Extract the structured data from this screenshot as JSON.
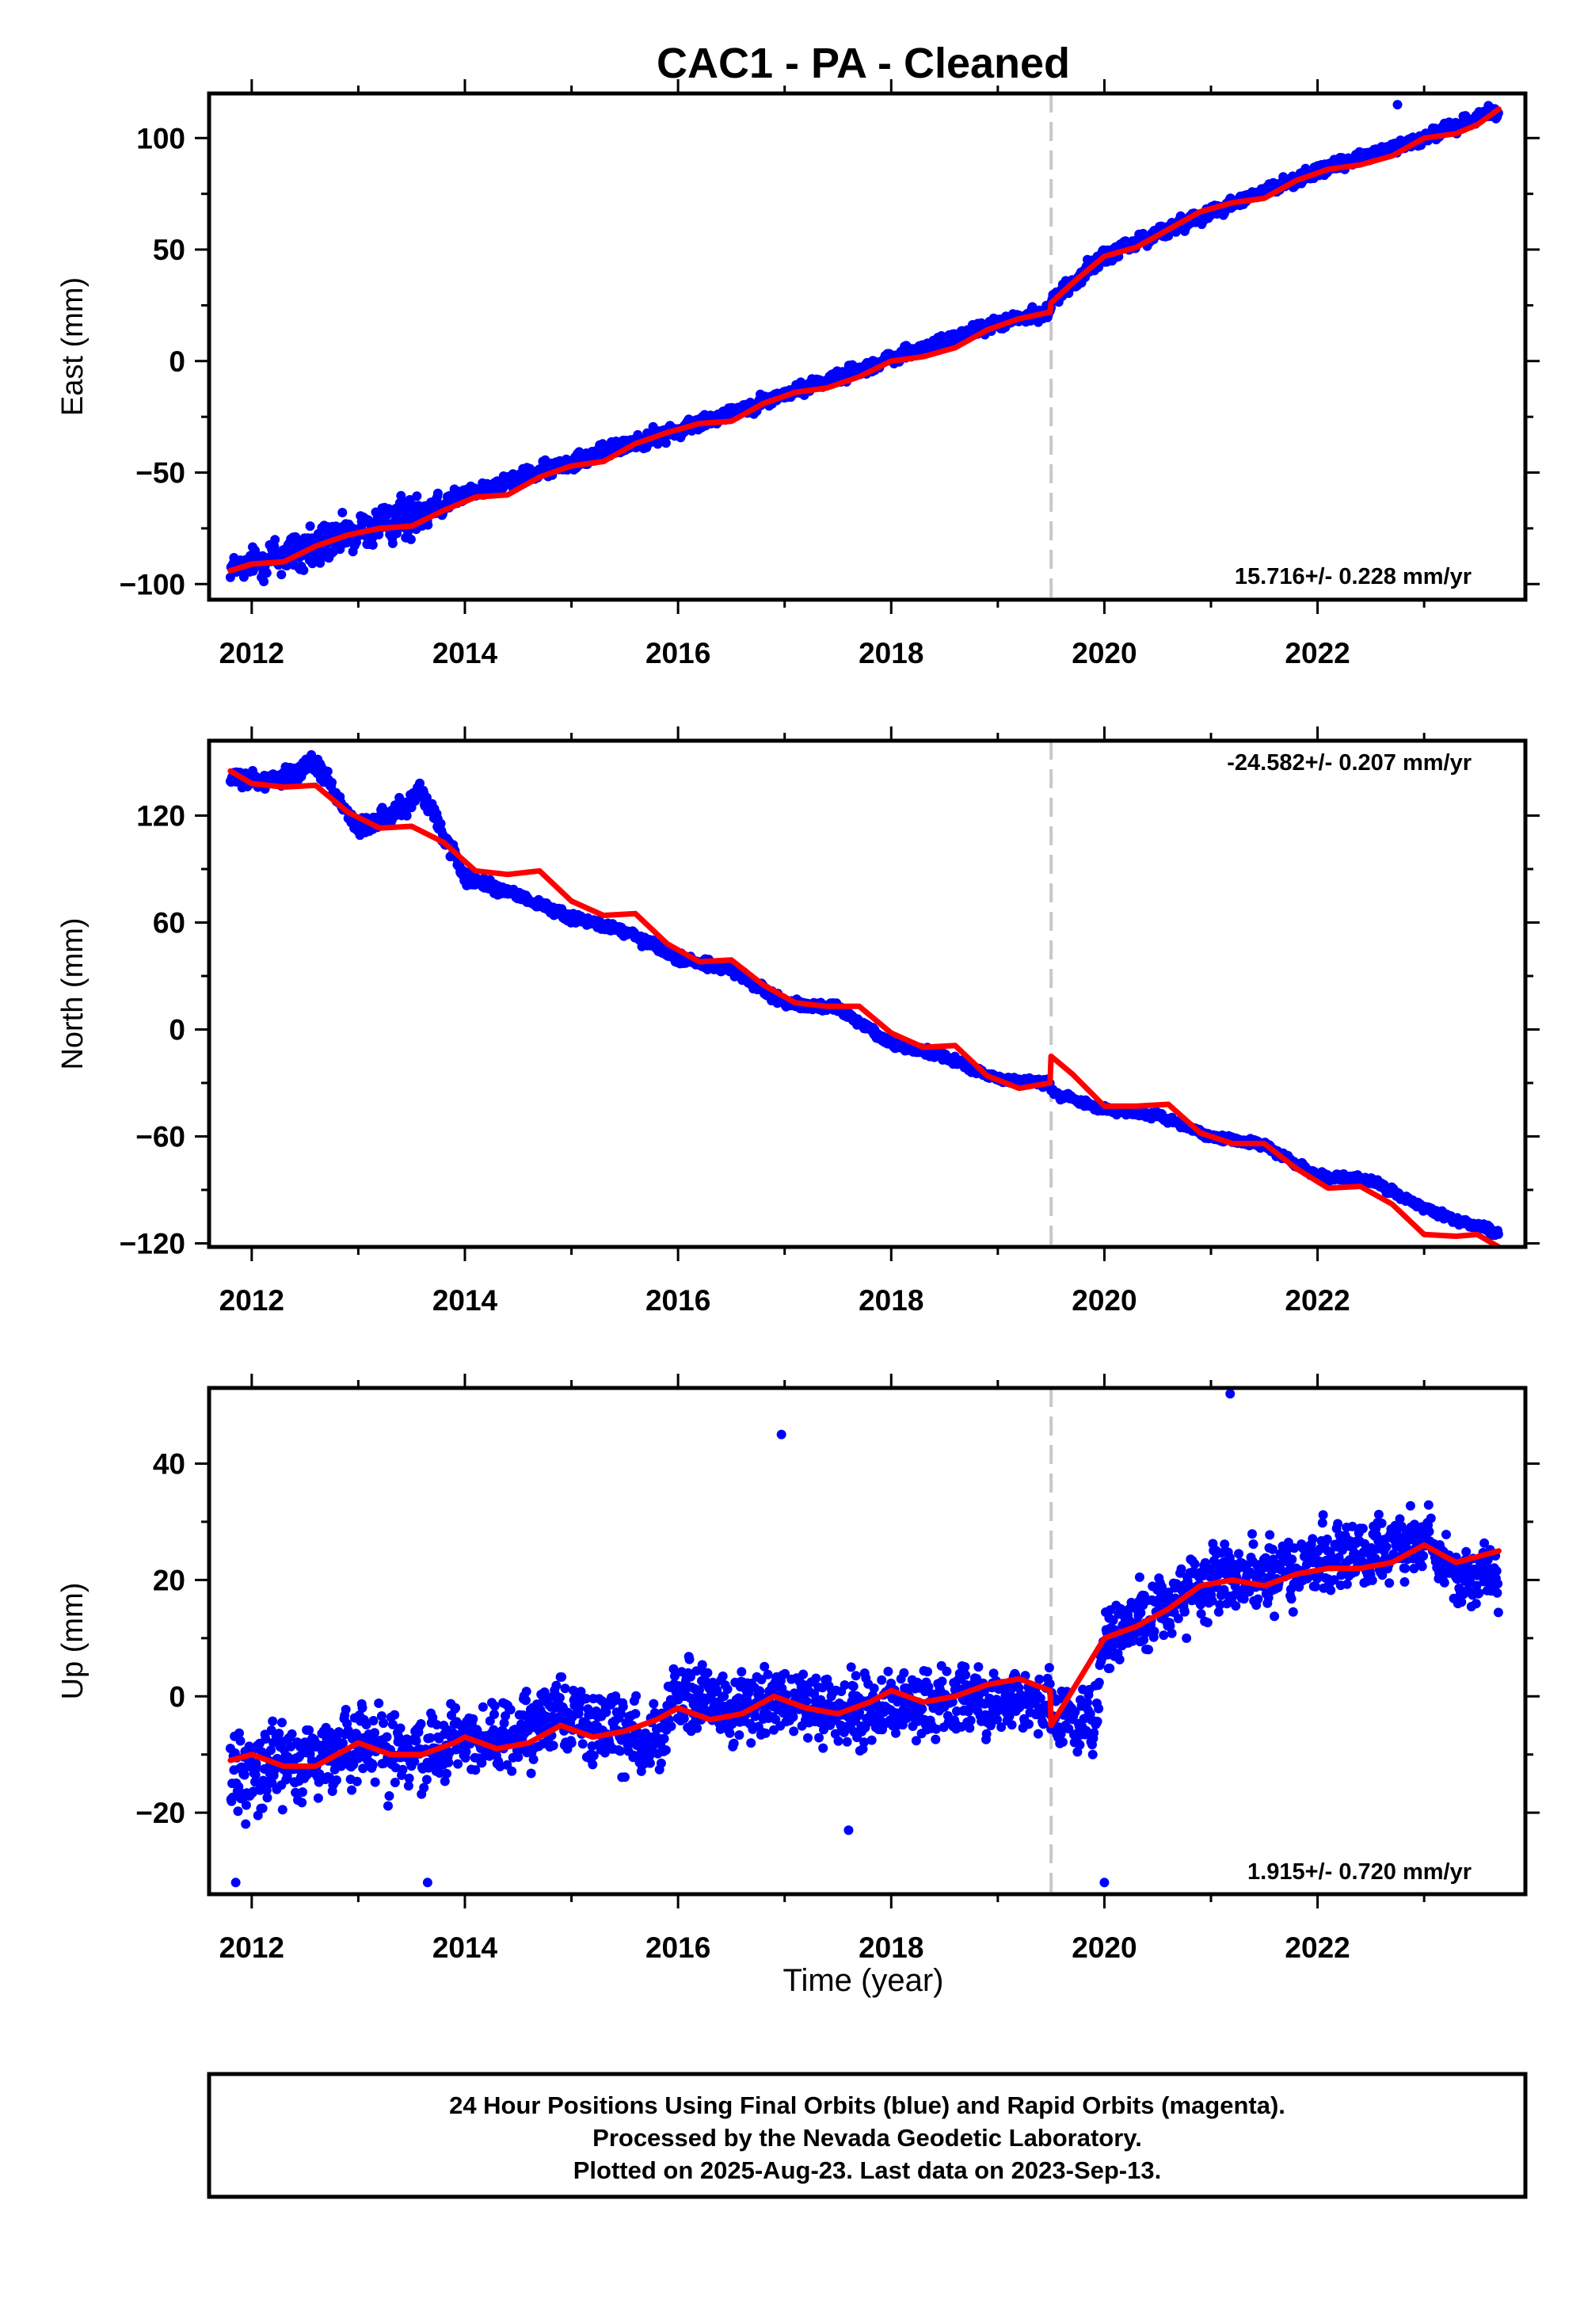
{
  "title": "CAC1  - PA - Cleaned",
  "xlabel": "Time (year)",
  "footer": {
    "line1": "24 Hour Positions Using Final Orbits (blue) and Rapid Orbits (magenta).",
    "line2": "Processed by the Nevada Geodetic Laboratory.",
    "line3": "Plotted on 2025-Aug-23. Last data on 2023-Sep-13."
  },
  "colors": {
    "data": "#0000ff",
    "model": "#ff0000",
    "break_line": "#c8c8c8",
    "frame": "#000000"
  },
  "chart_data": [
    {
      "type": "scatter",
      "id": "east",
      "ylabel": "East (mm)",
      "rate_label": "15.716+/- 0.228 mm/yr",
      "xlim": [
        2011.6,
        2023.95
      ],
      "ylim": [
        -107,
        120
      ],
      "xticks": [
        2012,
        2014,
        2016,
        2018,
        2020,
        2022
      ],
      "yticks": [
        -100,
        -50,
        0,
        50,
        100
      ],
      "break_x": 2019.5,
      "grid": false,
      "model_series": {
        "name": "model",
        "x": [
          2011.8,
          2012.0,
          2012.3,
          2012.6,
          2012.9,
          2013.2,
          2013.5,
          2013.8,
          2014.1,
          2014.4,
          2014.7,
          2015.0,
          2015.3,
          2015.6,
          2015.9,
          2016.2,
          2016.5,
          2016.8,
          2017.1,
          2017.4,
          2017.7,
          2018.0,
          2018.3,
          2018.6,
          2018.9,
          2019.2,
          2019.49,
          2019.5,
          2019.7,
          2020.0,
          2020.3,
          2020.6,
          2020.9,
          2021.2,
          2021.5,
          2021.8,
          2022.1,
          2022.4,
          2022.7,
          2023.0,
          2023.3,
          2023.5,
          2023.7
        ],
        "y": [
          -94,
          -91,
          -90,
          -83,
          -78,
          -75,
          -74,
          -67,
          -61,
          -60,
          -52,
          -47,
          -45,
          -37,
          -32,
          -28,
          -27,
          -19,
          -14,
          -12,
          -7,
          0,
          2,
          6,
          14,
          19,
          22,
          26,
          35,
          47,
          51,
          59,
          67,
          71,
          73,
          81,
          86,
          88,
          92,
          100,
          102,
          106,
          113
        ]
      },
      "data_envelope": {
        "x": [
          2011.8,
          2012.5,
          2013.0,
          2013.5,
          2014.0,
          2015.0,
          2016.0,
          2017.0,
          2018.0,
          2019.0,
          2019.49,
          2019.5,
          2020.0,
          2021.0,
          2022.0,
          2023.0,
          2023.7
        ],
        "center": [
          -93,
          -85,
          -77,
          -69,
          -60,
          -45,
          -31,
          -15,
          1,
          17,
          22,
          27,
          47,
          67,
          85,
          100,
          113
        ],
        "spread": [
          6,
          16,
          10,
          14,
          4,
          5,
          5,
          4,
          4,
          4,
          4,
          5,
          5,
          4,
          4,
          4,
          4
        ]
      },
      "outliers": [
        {
          "x": 2022.75,
          "y": 115
        }
      ]
    },
    {
      "type": "scatter",
      "id": "north",
      "ylabel": "North (mm)",
      "rate_label": "-24.582+/- 0.207 mm/yr",
      "xlim": [
        2011.6,
        2023.95
      ],
      "ylim": [
        -122,
        162
      ],
      "xticks": [
        2012,
        2014,
        2016,
        2018,
        2020,
        2022
      ],
      "yticks": [
        -120,
        -60,
        0,
        60,
        120
      ],
      "break_x": 2019.5,
      "grid": false,
      "model_series": {
        "name": "model",
        "x": [
          2011.8,
          2012.0,
          2012.3,
          2012.6,
          2012.9,
          2013.2,
          2013.5,
          2013.8,
          2014.1,
          2014.4,
          2014.7,
          2015.0,
          2015.3,
          2015.6,
          2015.9,
          2016.2,
          2016.5,
          2016.8,
          2017.1,
          2017.4,
          2017.7,
          2018.0,
          2018.3,
          2018.6,
          2018.9,
          2019.2,
          2019.49,
          2019.5,
          2019.7,
          2020.0,
          2020.3,
          2020.6,
          2020.9,
          2021.2,
          2021.5,
          2021.8,
          2022.1,
          2022.4,
          2022.7,
          2023.0,
          2023.3,
          2023.5,
          2023.7
        ],
        "y": [
          145,
          138,
          136,
          137,
          122,
          113,
          114,
          105,
          89,
          87,
          89,
          72,
          64,
          65,
          48,
          38,
          39,
          25,
          15,
          13,
          13,
          -2,
          -10,
          -9,
          -26,
          -33,
          -30,
          -15,
          -25,
          -43,
          -43,
          -42,
          -58,
          -64,
          -64,
          -78,
          -89,
          -88,
          -98,
          -115,
          -116,
          -115,
          -122
        ]
      },
      "data_envelope": {
        "x": [
          2011.8,
          2012.2,
          2012.6,
          2013.0,
          2013.3,
          2013.6,
          2014.0,
          2014.5,
          2015.0,
          2015.5,
          2016.0,
          2016.5,
          2017.0,
          2017.5,
          2018.0,
          2018.5,
          2019.0,
          2019.49,
          2019.5,
          2020.0,
          2020.5,
          2021.0,
          2021.5,
          2022.0,
          2022.5,
          2023.0,
          2023.3,
          2023.7
        ],
        "center": [
          140,
          140,
          150,
          112,
          120,
          133,
          85,
          75,
          63,
          55,
          40,
          33,
          15,
          12,
          -8,
          -15,
          -28,
          -30,
          -35,
          -45,
          -48,
          -60,
          -65,
          -82,
          -85,
          -100,
          -107,
          -114
        ],
        "spread": [
          6,
          6,
          8,
          6,
          8,
          8,
          6,
          3,
          4,
          4,
          4,
          4,
          4,
          3,
          3,
          3,
          3,
          3,
          3,
          3,
          3,
          3,
          3,
          3,
          3,
          3,
          3,
          3
        ]
      },
      "outliers": []
    },
    {
      "type": "scatter",
      "id": "up",
      "ylabel": "Up (mm)",
      "rate_label": "1.915+/- 0.720 mm/yr",
      "xlim": [
        2011.6,
        2023.95
      ],
      "ylim": [
        -34,
        53
      ],
      "xticks": [
        2012,
        2014,
        2016,
        2018,
        2020,
        2022
      ],
      "yticks": [
        -20,
        0,
        20,
        40
      ],
      "break_x": 2019.5,
      "grid": false,
      "model_series": {
        "name": "model",
        "x": [
          2011.8,
          2012.0,
          2012.3,
          2012.6,
          2012.9,
          2013.0,
          2013.3,
          2013.6,
          2013.9,
          2014.0,
          2014.3,
          2014.6,
          2014.9,
          2015.2,
          2015.5,
          2015.8,
          2016.0,
          2016.3,
          2016.6,
          2016.9,
          2017.2,
          2017.5,
          2017.8,
          2018.0,
          2018.3,
          2018.6,
          2018.9,
          2019.2,
          2019.49,
          2019.5,
          2019.7,
          2020.0,
          2020.3,
          2020.6,
          2020.9,
          2021.2,
          2021.5,
          2021.8,
          2022.1,
          2022.4,
          2022.7,
          2023.0,
          2023.3,
          2023.5,
          2023.7
        ],
        "y": [
          -11,
          -10,
          -12,
          -12,
          -9,
          -8,
          -10,
          -10,
          -8,
          -7,
          -9,
          -8,
          -5,
          -7,
          -6,
          -4,
          -2,
          -4,
          -3,
          0,
          -2,
          -3,
          -1,
          1,
          -1,
          0,
          2,
          3,
          1,
          -5,
          1,
          10,
          12,
          15,
          19,
          20,
          19,
          21,
          22,
          22,
          23,
          26,
          23,
          24,
          25
        ]
      },
      "data_envelope": {
        "x": [
          2011.8,
          2012.5,
          2013.0,
          2013.5,
          2014.0,
          2014.5,
          2014.9,
          2015.3,
          2015.8,
          2016.0,
          2016.5,
          2017.0,
          2017.5,
          2018.0,
          2018.5,
          2019.0,
          2019.49,
          2019.5,
          2019.9,
          2020.0,
          2020.5,
          2021.0,
          2021.5,
          2022.0,
          2022.5,
          2023.0,
          2023.3,
          2023.7
        ],
        "center": [
          -13,
          -11,
          -9,
          -10,
          -7,
          -7,
          -2,
          -6,
          -7,
          0,
          -2,
          -1,
          -3,
          -2,
          -1,
          0,
          -1,
          -4,
          -5,
          10,
          15,
          20,
          21,
          23,
          24,
          27,
          20,
          21
        ],
        "spread": [
          10,
          10,
          9,
          9,
          8,
          8,
          8,
          8,
          9,
          9,
          8,
          8,
          8,
          8,
          8,
          7,
          7,
          7,
          7,
          8,
          8,
          8,
          8,
          8,
          8,
          8,
          7,
          8
        ]
      },
      "outliers": [
        {
          "x": 2016.97,
          "y": 45
        },
        {
          "x": 2021.18,
          "y": 52
        },
        {
          "x": 2020.0,
          "y": -32
        },
        {
          "x": 2017.6,
          "y": -23
        },
        {
          "x": 2011.85,
          "y": -32
        },
        {
          "x": 2013.65,
          "y": -32
        }
      ]
    }
  ]
}
